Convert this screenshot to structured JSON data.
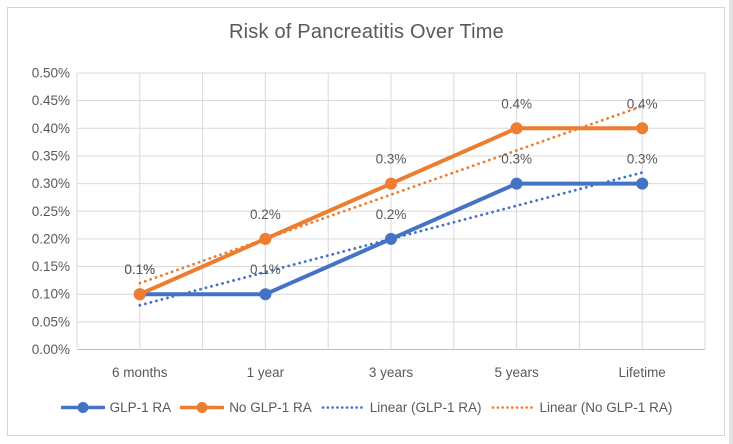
{
  "chart_data": {
    "type": "line",
    "title": "Risk of Pancreatitis Over Time",
    "categories": [
      "6 months",
      "1 year",
      "3 years",
      "5 years",
      "Lifetime"
    ],
    "series": [
      {
        "name": "GLP-1 RA",
        "kind": "line-markers",
        "color": "#4472C4",
        "values": [
          0.1,
          0.1,
          0.2,
          0.3,
          0.3
        ],
        "point_labels": [
          "0.1%",
          "0.1%",
          "0.2%",
          "0.3%",
          "0.3%"
        ]
      },
      {
        "name": "No GLP-1 RA",
        "kind": "line-markers",
        "color": "#ED7D31",
        "values": [
          0.1,
          0.2,
          0.3,
          0.4,
          0.4
        ],
        "point_labels": [
          "0.1%",
          "0.2%",
          "0.3%",
          "0.4%",
          "0.4%"
        ]
      },
      {
        "name": "Linear (GLP-1 RA)",
        "kind": "trendline-dotted",
        "color": "#4472C4",
        "endpoint_values": [
          0.08,
          0.32
        ]
      },
      {
        "name": "Linear (No GLP-1 RA)",
        "kind": "trendline-dotted",
        "color": "#ED7D31",
        "endpoint_values": [
          0.12,
          0.44
        ]
      }
    ],
    "y_axis": {
      "min": 0,
      "max": 0.5,
      "step": 0.05,
      "tick_labels": [
        "0.00%",
        "0.05%",
        "0.10%",
        "0.15%",
        "0.20%",
        "0.25%",
        "0.30%",
        "0.35%",
        "0.40%",
        "0.45%",
        "0.50%"
      ]
    },
    "x_axis": {
      "labels": [
        "6 months",
        "1 year",
        "3 years",
        "5 years",
        "Lifetime"
      ]
    },
    "legend": {
      "position": "bottom",
      "entries": [
        "GLP-1 RA",
        "No GLP-1 RA",
        "Linear (GLP-1 RA)",
        "Linear (No GLP-1 RA)"
      ]
    },
    "grid": true,
    "styles": {
      "grid_color": "#D9D9D9",
      "axis_line_color": "#BFBFBF",
      "text_color": "#595959",
      "background": "#FFFFFF",
      "frame_border_color": "#D4D4D4"
    }
  }
}
